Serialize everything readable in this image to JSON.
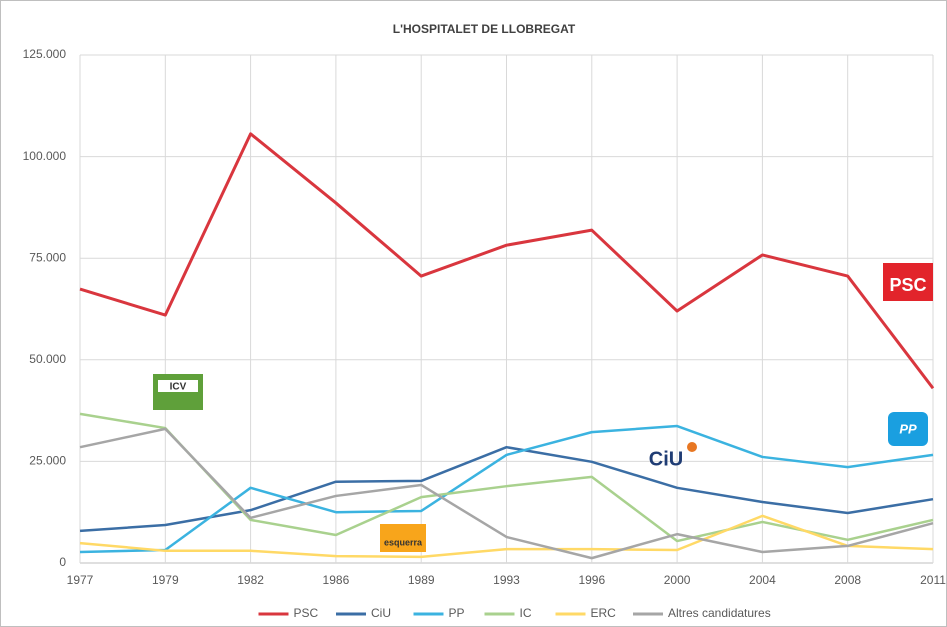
{
  "chart_data": {
    "type": "line",
    "title": "L'HOSPITALET DE LLOBREGAT",
    "categories": [
      "1977",
      "1979",
      "1982",
      "1986",
      "1989",
      "1993",
      "1996",
      "2000",
      "2004",
      "2008",
      "2011"
    ],
    "series": [
      {
        "name": "PSC",
        "color": "#d9363e",
        "values": [
          67400,
          61000,
          105600,
          88600,
          70600,
          78200,
          81900,
          62000,
          75800,
          70600,
          43000
        ]
      },
      {
        "name": "CiU",
        "color": "#3b6ea5",
        "values": [
          7900,
          9350,
          13000,
          20000,
          20200,
          28500,
          24900,
          18500,
          15000,
          12300,
          15700
        ]
      },
      {
        "name": "PP",
        "color": "#3bb3e0",
        "values": [
          2700,
          3200,
          18500,
          12500,
          12800,
          26600,
          32200,
          33700,
          26100,
          23600,
          26600
        ]
      },
      {
        "name": "IC",
        "color": "#a9d18e",
        "values": [
          36700,
          33200,
          10600,
          6900,
          16200,
          18900,
          21200,
          5400,
          10100,
          5700,
          10600
        ]
      },
      {
        "name": "ERC",
        "color": "#ffd966",
        "values": [
          4900,
          3000,
          3000,
          1700,
          1500,
          3400,
          3400,
          3200,
          11600,
          4200,
          3400
        ]
      },
      {
        "name": "Altres candidatures",
        "color": "#a6a6a6",
        "values": [
          28500,
          33000,
          11100,
          16500,
          19200,
          6400,
          1200,
          7100,
          2700,
          4200,
          9800
        ]
      }
    ],
    "ylim": [
      0,
      125000
    ],
    "yticks": [
      0,
      {
        "value": 25000,
        "label": "25.000"
      },
      {
        "value": 50000,
        "label": "50.000"
      },
      {
        "value": 75000,
        "label": "75.000"
      },
      {
        "value": 100000,
        "label": "100.000"
      },
      {
        "value": 125000,
        "label": "125.000"
      }
    ],
    "grid": true,
    "legend": "bottom",
    "logos": [
      "PSC",
      "ICV",
      "esquerra",
      "CiU",
      "PP"
    ]
  }
}
